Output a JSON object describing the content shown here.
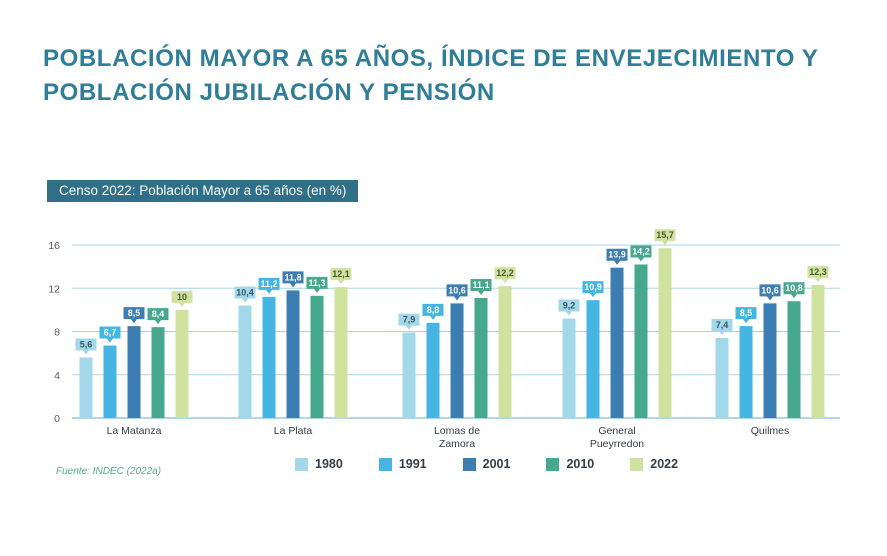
{
  "page": {
    "title_lines": [
      "POBLACIÓN MAYOR A 65 AÑOS, ÍNDICE DE ENVEJECIMIENTO Y",
      "POBLACIÓN JUBILACIÓN Y PENSIÓN"
    ],
    "source": "Fuente: INDEC (2022a)"
  },
  "chart_data": {
    "type": "bar",
    "title": "Censo 2022: Población Mayor a 65 años (en %)",
    "xlabel": "",
    "ylabel": "",
    "ylim": [
      0,
      16
    ],
    "yticks": [
      0,
      4,
      8,
      12,
      16
    ],
    "grid": true,
    "legend_position": "bottom",
    "categories": [
      [
        "La Matanza"
      ],
      [
        "La Plata"
      ],
      [
        "Lomas de",
        "Zamora"
      ],
      [
        "General",
        "Pueyrredon"
      ],
      [
        "Quilmes"
      ]
    ],
    "series": [
      {
        "name": "1980",
        "color": "#a3d7ea",
        "values": [
          5.6,
          10.4,
          7.9,
          9.2,
          7.4
        ],
        "labels": [
          "5,6",
          "10,4",
          "7,9",
          "9,2",
          "7,4"
        ]
      },
      {
        "name": "1991",
        "color": "#45b6e4",
        "values": [
          6.7,
          11.2,
          8.8,
          10.9,
          8.5
        ],
        "labels": [
          "6,7",
          "11,2",
          "8,8",
          "10,9",
          "8,5"
        ]
      },
      {
        "name": "2001",
        "color": "#3c7db2",
        "values": [
          8.5,
          11.8,
          10.6,
          13.9,
          10.6
        ],
        "labels": [
          "8,5",
          "11,8",
          "10,6",
          "13,9",
          "10,6"
        ]
      },
      {
        "name": "2010",
        "color": "#46a88d",
        "values": [
          8.4,
          11.3,
          11.1,
          14.2,
          10.8
        ],
        "labels": [
          "8,4",
          "11,3",
          "11,1",
          "14,2",
          "10,8"
        ]
      },
      {
        "name": "2022",
        "color": "#cfe29f",
        "values": [
          10,
          12.1,
          12.2,
          15.7,
          12.3
        ],
        "labels": [
          "10",
          "12,1",
          "12,2",
          "15,7",
          "12,3"
        ]
      }
    ]
  }
}
